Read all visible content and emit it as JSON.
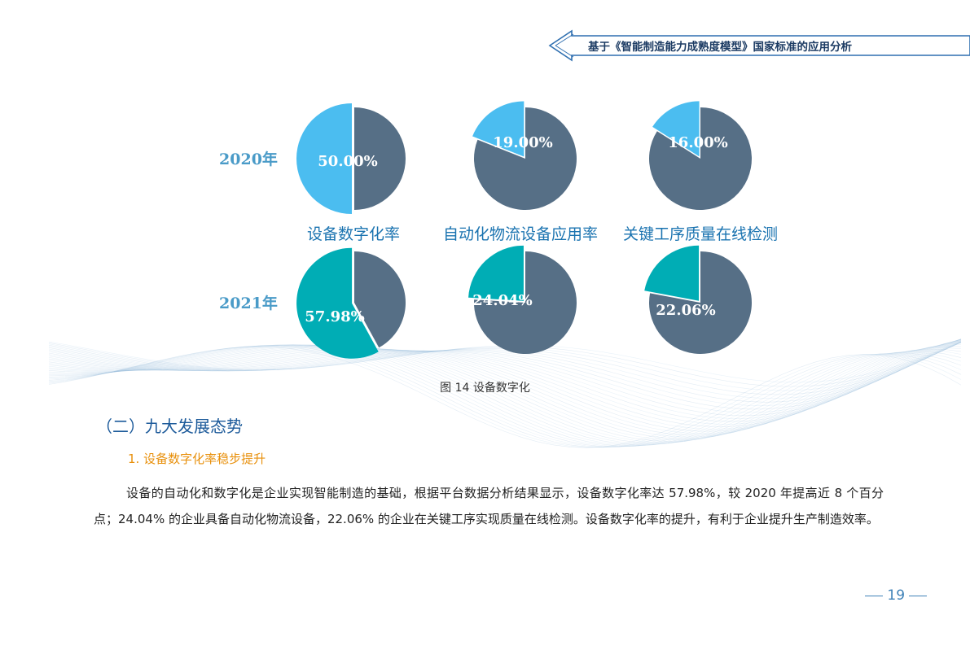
{
  "header": {
    "title": "基于《智能制造能力成熟度模型》国家标准的应用分析"
  },
  "chart_data": {
    "type": "pie",
    "rows": [
      "2020年",
      "2021年"
    ],
    "categories": [
      "设备数字化率",
      "自动化物流设备应用率",
      "关键工序质量在线检测"
    ],
    "values": {
      "2020年": [
        50.0,
        19.0,
        16.0
      ],
      "2021年": [
        57.98,
        24.04,
        22.06
      ]
    },
    "labels": {
      "2020年": [
        "50.00%",
        "19.00%",
        "16.00%"
      ],
      "2021年": [
        "57.98%",
        "24.04%",
        "22.06%"
      ]
    },
    "colors": {
      "highlight_2020": "#4bbdf0",
      "highlight_2021": "#00adb5",
      "rest": "#566f86"
    }
  },
  "caption": "图 14  设备数字化",
  "section": {
    "title": "（二）九大发展态势",
    "subtitle": "1. 设备数字化率稳步提升"
  },
  "body": {
    "paragraph": "设备的自动化和数字化是企业实现智能制造的基础，根据平台数据分析结果显示，设备数字化率达 57.98%，较 2020 年提高近 8 个百分点；24.04% 的企业具备自动化物流设备，22.06% 的企业在关键工序实现质量在线检测。设备数字化率的提升，有利于企业提升生产制造效率。"
  },
  "page": {
    "number": "19"
  }
}
